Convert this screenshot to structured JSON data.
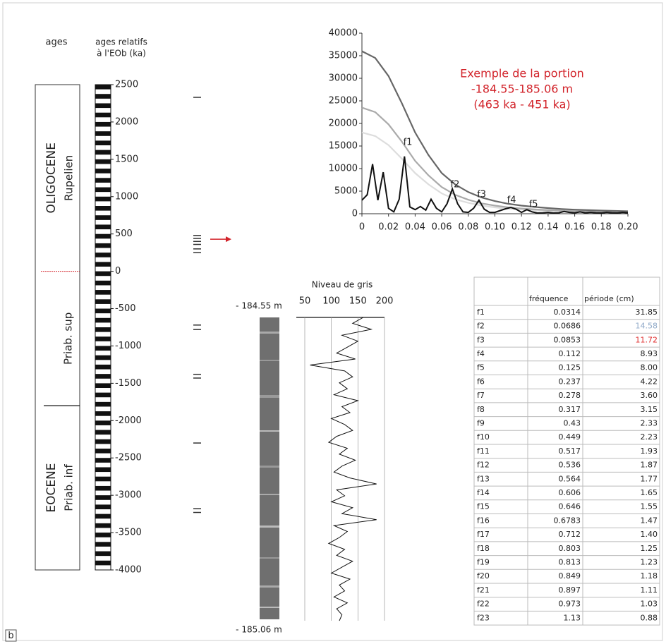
{
  "chart_data": [
    {
      "type": "age_scale",
      "title": "ages",
      "y_label": [
        "ages relatifs",
        "à l'EOb (ka)"
      ],
      "ylim": [
        -4000,
        2500
      ],
      "yticks": [
        2500,
        2000,
        1500,
        1000,
        500,
        0,
        -500,
        -1000,
        -1500,
        -2000,
        -2500,
        -3000,
        -3500,
        -4000
      ],
      "stages": [
        {
          "label": "Rupelien",
          "epoch": "OLIGOCENE",
          "top": 2500,
          "base": 0
        },
        {
          "label": "Priab. sup",
          "top": 0,
          "base": -1800
        },
        {
          "label": "Priab. inf",
          "epoch": "EOCENE",
          "top": -1800,
          "base": -4000
        }
      ],
      "boundary_color": "#d2232a",
      "markers": [
        2330,
        480,
        440,
        400,
        360,
        300,
        250,
        -720,
        -780,
        -1380,
        -1430,
        -2300,
        -3180,
        -3230
      ],
      "arrow_at": 430,
      "arrow_color": "#d2232a"
    },
    {
      "type": "line",
      "annotation": [
        "Exemple de la portion",
        "-184.55-185.06 m",
        "(463 ka - 451 ka)"
      ],
      "annotation_color": "#d2232a",
      "xlim": [
        0,
        0.2
      ],
      "xticks": [
        0,
        0.02,
        0.04,
        0.06,
        0.08,
        {
          "value": 0.1,
          "label": "0.10"
        },
        0.12,
        0.14,
        0.16,
        0.18,
        {
          "value": 0.2,
          "label": "0.20"
        }
      ],
      "ylim": [
        0,
        40000
      ],
      "yticks": [
        0,
        5000,
        10000,
        15000,
        20000,
        25000,
        30000,
        35000,
        40000
      ],
      "series": [
        {
          "color": "#dddddd",
          "x": [
            0,
            0.01,
            0.02,
            0.03,
            0.04,
            0.05,
            0.06,
            0.07,
            0.08,
            0.09,
            0.1,
            0.11,
            0.12,
            0.13,
            0.14,
            0.15,
            0.16,
            0.17,
            0.18,
            0.19,
            0.2
          ],
          "values": [
            18000,
            17200,
            15200,
            12200,
            9000,
            6500,
            4500,
            3200,
            2400,
            1800,
            1400,
            1100,
            900,
            750,
            620,
            530,
            450,
            400,
            350,
            310,
            280
          ]
        },
        {
          "color": "#aaaaaa",
          "x": [
            0,
            0.01,
            0.02,
            0.03,
            0.04,
            0.05,
            0.06,
            0.07,
            0.08,
            0.09,
            0.1,
            0.11,
            0.12,
            0.13,
            0.14,
            0.15,
            0.16,
            0.17,
            0.18,
            0.19,
            0.2
          ],
          "values": [
            23500,
            22500,
            19800,
            16000,
            11700,
            8500,
            5900,
            4200,
            3100,
            2300,
            1800,
            1400,
            1150,
            950,
            800,
            680,
            580,
            510,
            450,
            400,
            350
          ]
        },
        {
          "color": "#666666",
          "x": [
            0,
            0.01,
            0.02,
            0.03,
            0.04,
            0.05,
            0.06,
            0.07,
            0.08,
            0.09,
            0.1,
            0.11,
            0.12,
            0.13,
            0.14,
            0.15,
            0.16,
            0.17,
            0.18,
            0.19,
            0.2
          ],
          "values": [
            36000,
            34500,
            30500,
            24500,
            18000,
            13000,
            9000,
            6500,
            4800,
            3600,
            2800,
            2200,
            1800,
            1500,
            1250,
            1050,
            900,
            800,
            700,
            620,
            550
          ]
        },
        {
          "color": "#111111",
          "x": [
            0,
            0.004,
            0.008,
            0.012,
            0.016,
            0.02,
            0.024,
            0.028,
            0.032,
            0.036,
            0.04,
            0.044,
            0.048,
            0.052,
            0.056,
            0.06,
            0.064,
            0.068,
            0.072,
            0.076,
            0.08,
            0.084,
            0.088,
            0.092,
            0.096,
            0.1,
            0.104,
            0.108,
            0.112,
            0.116,
            0.12,
            0.124,
            0.128,
            0.132,
            0.136,
            0.14,
            0.144,
            0.148,
            0.152,
            0.156,
            0.16,
            0.164,
            0.168,
            0.172,
            0.176,
            0.18,
            0.184,
            0.188,
            0.192,
            0.196,
            0.2
          ],
          "values": [
            3000,
            4200,
            11000,
            3000,
            9200,
            1200,
            400,
            3200,
            12700,
            1500,
            900,
            1600,
            800,
            3200,
            1200,
            400,
            2200,
            5500,
            2200,
            400,
            300,
            1200,
            3000,
            1000,
            300,
            300,
            700,
            1100,
            1400,
            1000,
            300,
            900,
            400,
            150,
            200,
            300,
            150,
            200,
            500,
            300,
            200,
            400,
            200,
            300,
            200,
            150,
            300,
            200,
            150,
            300,
            200
          ]
        }
      ],
      "peak_labels": [
        {
          "label": "f1",
          "x": 0.0345,
          "y": 15800
        },
        {
          "label": "f2",
          "x": 0.07,
          "y": 6400
        },
        {
          "label": "f3",
          "x": 0.09,
          "y": 4200
        },
        {
          "label": "f4",
          "x": 0.1125,
          "y": 3000
        },
        {
          "label": "f5",
          "x": 0.129,
          "y": 2000
        }
      ]
    },
    {
      "type": "profile",
      "title": "Niveau de gris",
      "xlim": [
        50,
        200
      ],
      "xticks": [
        50,
        100,
        150,
        200
      ],
      "ylim": [
        -185.06,
        -184.55
      ],
      "yticks": [
        {
          "value": -184.55,
          "label": "- 184.55 m"
        },
        {
          "value": -185.06,
          "label": "- 185.06 m"
        }
      ],
      "color": "#111111",
      "y": [
        -184.55,
        -184.56,
        -184.57,
        -184.58,
        -184.59,
        -184.6,
        -184.61,
        -184.62,
        -184.63,
        -184.64,
        -184.65,
        -184.66,
        -184.67,
        -184.68,
        -184.69,
        -184.7,
        -184.71,
        -184.72,
        -184.73,
        -184.74,
        -184.75,
        -184.76,
        -184.77,
        -184.78,
        -184.79,
        -184.8,
        -184.81,
        -184.82,
        -184.83,
        -184.84,
        -184.85,
        -184.86,
        -184.87,
        -184.88,
        -184.89,
        -184.9,
        -184.91,
        -184.92,
        -184.93,
        -184.94,
        -184.95,
        -184.96,
        -184.97,
        -184.98,
        -184.99,
        -185,
        -185.01,
        -185.02,
        -185.03,
        -185.04,
        -185.05,
        -185.06
      ],
      "values": [
        160,
        140,
        175,
        120,
        150,
        130,
        110,
        145,
        60,
        125,
        140,
        115,
        130,
        105,
        150,
        120,
        135,
        100,
        125,
        140,
        110,
        95,
        130,
        115,
        145,
        120,
        105,
        135,
        185,
        110,
        125,
        100,
        140,
        120,
        185,
        105,
        130,
        115,
        95,
        125,
        110,
        140,
        120,
        100,
        135,
        115,
        125,
        105,
        130,
        110,
        120,
        115
      ]
    }
  ],
  "table": {
    "columns": [
      "fréquence",
      "période (cm)"
    ],
    "rows": [
      {
        "name": "f1",
        "frequency": "0.0314",
        "period": "31.85"
      },
      {
        "name": "f2",
        "frequency": "0.0686",
        "period": "14.58",
        "period_color": "#8fa9c8"
      },
      {
        "name": "f3",
        "frequency": "0.0853",
        "period": "11.72",
        "period_color": "#e03030"
      },
      {
        "name": "f4",
        "frequency": "0.112",
        "period": "8.93"
      },
      {
        "name": "f5",
        "frequency": "0.125",
        "period": "8.00"
      },
      {
        "name": "f6",
        "frequency": "0.237",
        "period": "4.22"
      },
      {
        "name": "f7",
        "frequency": "0.278",
        "period": "3.60"
      },
      {
        "name": "f8",
        "frequency": "0.317",
        "period": "3.15"
      },
      {
        "name": "f9",
        "frequency": "0.43",
        "period": "2.33"
      },
      {
        "name": "f10",
        "frequency": "0.449",
        "period": "2.23"
      },
      {
        "name": "f11",
        "frequency": "0.517",
        "period": "1.93"
      },
      {
        "name": "f12",
        "frequency": "0.536",
        "period": "1.87"
      },
      {
        "name": "f13",
        "frequency": "0.564",
        "period": "1.77"
      },
      {
        "name": "f14",
        "frequency": "0.606",
        "period": "1.65"
      },
      {
        "name": "f15",
        "frequency": "0.646",
        "period": "1.55"
      },
      {
        "name": "f16",
        "frequency": "0.6783",
        "period": "1.47"
      },
      {
        "name": "f17",
        "frequency": "0.712",
        "period": "1.40"
      },
      {
        "name": "f18",
        "frequency": "0.803",
        "period": "1.25"
      },
      {
        "name": "f19",
        "frequency": "0.813",
        "period": "1.23"
      },
      {
        "name": "f20",
        "frequency": "0.849",
        "period": "1.18"
      },
      {
        "name": "f21",
        "frequency": "0.897",
        "period": "1.11"
      },
      {
        "name": "f22",
        "frequency": "0.973",
        "period": "1.03"
      },
      {
        "name": "f23",
        "frequency": "1.13",
        "period": "0.88"
      }
    ]
  },
  "figure_label": "b"
}
